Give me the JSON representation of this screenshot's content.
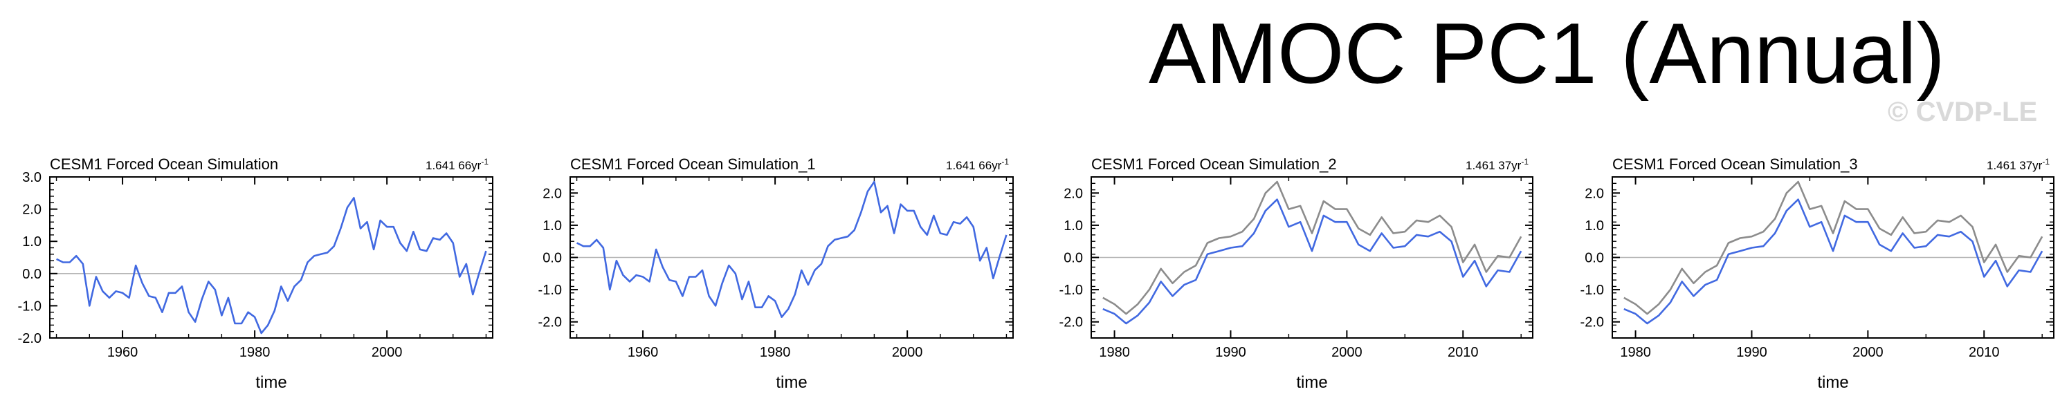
{
  "main_title": "AMOC PC1 (Annual)",
  "watermark": "© CVDP-LE",
  "colors": {
    "pc": "#4169e1",
    "obs": "#8c8c8c",
    "zero": "#b4b4b4",
    "axis": "#000000"
  },
  "chart_data": [
    {
      "type": "line",
      "title": "CESM1 Forced Ocean Simulation",
      "trend_label": "1.641 66yr",
      "trend_superscript": "-1",
      "xlabel": "time",
      "ylabel": "",
      "xlim": [
        1949,
        2016
      ],
      "ylim": [
        -2.0,
        3.0
      ],
      "yticks": [
        -2.0,
        -1.0,
        0.0,
        1.0,
        2.0,
        3.0
      ],
      "ytick_labels": [
        "-2.0",
        "-1.0",
        "0.0",
        "1.0",
        "2.0",
        "3.0"
      ],
      "xticks": [
        1960,
        1980,
        2000
      ],
      "xtick_labels": [
        "1960",
        "1980",
        "2000"
      ],
      "x": [
        1950,
        1951,
        1952,
        1953,
        1954,
        1955,
        1956,
        1957,
        1958,
        1959,
        1960,
        1961,
        1962,
        1963,
        1964,
        1965,
        1966,
        1967,
        1968,
        1969,
        1970,
        1971,
        1972,
        1973,
        1974,
        1975,
        1976,
        1977,
        1978,
        1979,
        1980,
        1981,
        1982,
        1983,
        1984,
        1985,
        1986,
        1987,
        1988,
        1989,
        1990,
        1991,
        1992,
        1993,
        1994,
        1995,
        1996,
        1997,
        1998,
        1999,
        2000,
        2001,
        2002,
        2003,
        2004,
        2005,
        2006,
        2007,
        2008,
        2009,
        2010,
        2011,
        2012,
        2013,
        2014,
        2015
      ],
      "series": [
        {
          "name": "CESM1 Forced Ocean Simulation",
          "color": "#4169e1",
          "values": [
            0.45,
            0.35,
            0.35,
            0.55,
            0.3,
            -1.0,
            -0.1,
            -0.55,
            -0.75,
            -0.55,
            -0.6,
            -0.75,
            0.25,
            -0.3,
            -0.7,
            -0.75,
            -1.2,
            -0.6,
            -0.6,
            -0.4,
            -1.2,
            -1.5,
            -0.8,
            -0.25,
            -0.5,
            -1.3,
            -0.75,
            -1.55,
            -1.55,
            -1.2,
            -1.35,
            -1.85,
            -1.6,
            -1.15,
            -0.4,
            -0.85,
            -0.4,
            -0.2,
            0.35,
            0.55,
            0.6,
            0.65,
            0.85,
            1.4,
            2.05,
            2.35,
            1.4,
            1.6,
            0.75,
            1.65,
            1.45,
            1.45,
            0.95,
            0.7,
            1.3,
            0.75,
            0.7,
            1.1,
            1.05,
            1.25,
            0.95,
            -0.1,
            0.3,
            -0.65,
            0.05,
            0.7
          ]
        }
      ]
    },
    {
      "type": "line",
      "title": "CESM1 Forced Ocean Simulation_1",
      "trend_label": "1.641 66yr",
      "trend_superscript": "-1",
      "xlabel": "time",
      "ylabel": "",
      "xlim": [
        1949,
        2016
      ],
      "ylim": [
        -2.5,
        2.5
      ],
      "yticks": [
        -2.0,
        -1.0,
        0.0,
        1.0,
        2.0
      ],
      "ytick_labels": [
        "-2.0",
        "-1.0",
        "0.0",
        "1.0",
        "2.0"
      ],
      "xticks": [
        1960,
        1980,
        2000
      ],
      "xtick_labels": [
        "1960",
        "1980",
        "2000"
      ],
      "x": [
        1950,
        1951,
        1952,
        1953,
        1954,
        1955,
        1956,
        1957,
        1958,
        1959,
        1960,
        1961,
        1962,
        1963,
        1964,
        1965,
        1966,
        1967,
        1968,
        1969,
        1970,
        1971,
        1972,
        1973,
        1974,
        1975,
        1976,
        1977,
        1978,
        1979,
        1980,
        1981,
        1982,
        1983,
        1984,
        1985,
        1986,
        1987,
        1988,
        1989,
        1990,
        1991,
        1992,
        1993,
        1994,
        1995,
        1996,
        1997,
        1998,
        1999,
        2000,
        2001,
        2002,
        2003,
        2004,
        2005,
        2006,
        2007,
        2008,
        2009,
        2010,
        2011,
        2012,
        2013,
        2014,
        2015
      ],
      "series": [
        {
          "name": "CESM1 Forced Ocean Simulation_1",
          "color": "#4169e1",
          "values": [
            0.45,
            0.35,
            0.35,
            0.55,
            0.3,
            -1.0,
            -0.1,
            -0.55,
            -0.75,
            -0.55,
            -0.6,
            -0.75,
            0.25,
            -0.3,
            -0.7,
            -0.75,
            -1.2,
            -0.6,
            -0.6,
            -0.4,
            -1.2,
            -1.5,
            -0.8,
            -0.25,
            -0.5,
            -1.3,
            -0.75,
            -1.55,
            -1.55,
            -1.2,
            -1.35,
            -1.85,
            -1.6,
            -1.15,
            -0.4,
            -0.85,
            -0.4,
            -0.2,
            0.35,
            0.55,
            0.6,
            0.65,
            0.85,
            1.4,
            2.05,
            2.35,
            1.4,
            1.6,
            0.75,
            1.65,
            1.45,
            1.45,
            0.95,
            0.7,
            1.3,
            0.75,
            0.7,
            1.1,
            1.05,
            1.25,
            0.95,
            -0.1,
            0.3,
            -0.65,
            0.05,
            0.7
          ]
        }
      ]
    },
    {
      "type": "line",
      "title": "CESM1 Forced Ocean Simulation_2",
      "trend_label": "1.461 37yr",
      "trend_superscript": "-1",
      "xlabel": "time",
      "ylabel": "",
      "xlim": [
        1978,
        2016
      ],
      "ylim": [
        -2.5,
        2.5
      ],
      "yticks": [
        -2.0,
        -1.0,
        0.0,
        1.0,
        2.0
      ],
      "ytick_labels": [
        "-2.0",
        "-1.0",
        "0.0",
        "1.0",
        "2.0"
      ],
      "xticks": [
        1980,
        1990,
        2000,
        2010
      ],
      "xtick_labels": [
        "1980",
        "1990",
        "2000",
        "2010"
      ],
      "x": [
        1979,
        1980,
        1981,
        1982,
        1983,
        1984,
        1985,
        1986,
        1987,
        1988,
        1989,
        1990,
        1991,
        1992,
        1993,
        1994,
        1995,
        1996,
        1997,
        1998,
        1999,
        2000,
        2001,
        2002,
        2003,
        2004,
        2005,
        2006,
        2007,
        2008,
        2009,
        2010,
        2011,
        2012,
        2013,
        2014,
        2015
      ],
      "series": [
        {
          "name": "CESM1 Forced Ocean Simulation_2",
          "color": "#4169e1",
          "values": [
            -1.6,
            -1.75,
            -2.05,
            -1.8,
            -1.4,
            -0.75,
            -1.2,
            -0.85,
            -0.7,
            0.1,
            0.2,
            0.3,
            0.35,
            0.75,
            1.45,
            1.8,
            0.95,
            1.1,
            0.2,
            1.3,
            1.1,
            1.1,
            0.4,
            0.2,
            0.75,
            0.3,
            0.35,
            0.7,
            0.65,
            0.8,
            0.5,
            -0.6,
            -0.1,
            -0.9,
            -0.4,
            -0.45,
            0.2
          ]
        },
        {
          "name": "reference",
          "color": "#8c8c8c",
          "values": [
            -1.25,
            -1.45,
            -1.75,
            -1.45,
            -1.0,
            -0.35,
            -0.8,
            -0.45,
            -0.25,
            0.45,
            0.6,
            0.65,
            0.8,
            1.2,
            2.0,
            2.35,
            1.5,
            1.6,
            0.75,
            1.75,
            1.5,
            1.5,
            0.9,
            0.7,
            1.25,
            0.75,
            0.8,
            1.15,
            1.1,
            1.3,
            0.95,
            -0.15,
            0.4,
            -0.45,
            0.05,
            0.0,
            0.65
          ]
        }
      ]
    },
    {
      "type": "line",
      "title": "CESM1 Forced Ocean Simulation_3",
      "trend_label": "1.461 37yr",
      "trend_superscript": "-1",
      "xlabel": "time",
      "ylabel": "",
      "xlim": [
        1978,
        2016
      ],
      "ylim": [
        -2.5,
        2.5
      ],
      "yticks": [
        -2.0,
        -1.0,
        0.0,
        1.0,
        2.0
      ],
      "ytick_labels": [
        "-2.0",
        "-1.0",
        "0.0",
        "1.0",
        "2.0"
      ],
      "xticks": [
        1980,
        1990,
        2000,
        2010
      ],
      "xtick_labels": [
        "1980",
        "1990",
        "2000",
        "2010"
      ],
      "x": [
        1979,
        1980,
        1981,
        1982,
        1983,
        1984,
        1985,
        1986,
        1987,
        1988,
        1989,
        1990,
        1991,
        1992,
        1993,
        1994,
        1995,
        1996,
        1997,
        1998,
        1999,
        2000,
        2001,
        2002,
        2003,
        2004,
        2005,
        2006,
        2007,
        2008,
        2009,
        2010,
        2011,
        2012,
        2013,
        2014,
        2015
      ],
      "series": [
        {
          "name": "CESM1 Forced Ocean Simulation_3",
          "color": "#4169e1",
          "values": [
            -1.6,
            -1.75,
            -2.05,
            -1.8,
            -1.4,
            -0.75,
            -1.2,
            -0.85,
            -0.7,
            0.1,
            0.2,
            0.3,
            0.35,
            0.75,
            1.45,
            1.8,
            0.95,
            1.1,
            0.2,
            1.3,
            1.1,
            1.1,
            0.4,
            0.2,
            0.75,
            0.3,
            0.35,
            0.7,
            0.65,
            0.8,
            0.5,
            -0.6,
            -0.1,
            -0.9,
            -0.4,
            -0.45,
            0.2
          ]
        },
        {
          "name": "reference",
          "color": "#8c8c8c",
          "values": [
            -1.25,
            -1.45,
            -1.75,
            -1.45,
            -1.0,
            -0.35,
            -0.8,
            -0.45,
            -0.25,
            0.45,
            0.6,
            0.65,
            0.8,
            1.2,
            2.0,
            2.35,
            1.5,
            1.6,
            0.75,
            1.75,
            1.5,
            1.5,
            0.9,
            0.7,
            1.25,
            0.75,
            0.8,
            1.15,
            1.1,
            1.3,
            0.95,
            -0.15,
            0.4,
            -0.45,
            0.05,
            0.0,
            0.65
          ]
        }
      ]
    }
  ]
}
